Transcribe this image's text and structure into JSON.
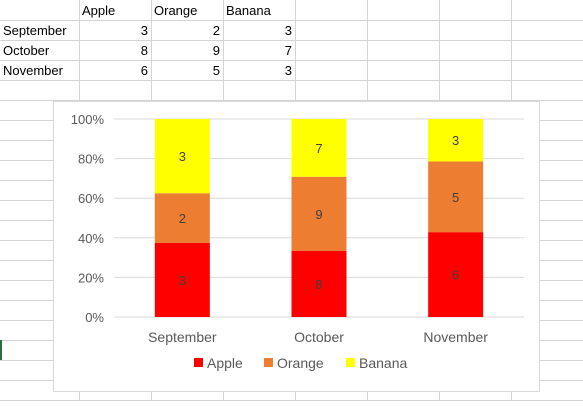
{
  "sheet": {
    "headers": [
      "Apple",
      "Orange",
      "Banana"
    ],
    "rows": [
      {
        "label": "September",
        "values": [
          "3",
          "2",
          "3"
        ]
      },
      {
        "label": "October",
        "values": [
          "8",
          "9",
          "7"
        ]
      },
      {
        "label": "November",
        "values": [
          "6",
          "5",
          "3"
        ]
      }
    ]
  },
  "chart_data": {
    "type": "bar",
    "stacked": "percent",
    "categories": [
      "September",
      "October",
      "November"
    ],
    "series": [
      {
        "name": "Apple",
        "values": [
          3,
          8,
          6
        ],
        "color": "#ff0000"
      },
      {
        "name": "Orange",
        "values": [
          2,
          9,
          5
        ],
        "color": "#ed7d31"
      },
      {
        "name": "Banana",
        "values": [
          3,
          7,
          3
        ],
        "color": "#ffff00"
      }
    ],
    "yticks": [
      "0%",
      "20%",
      "40%",
      "60%",
      "80%",
      "100%"
    ],
    "ylim": [
      0,
      100
    ],
    "grid": true,
    "legend": "bottom",
    "data_labels": true
  }
}
